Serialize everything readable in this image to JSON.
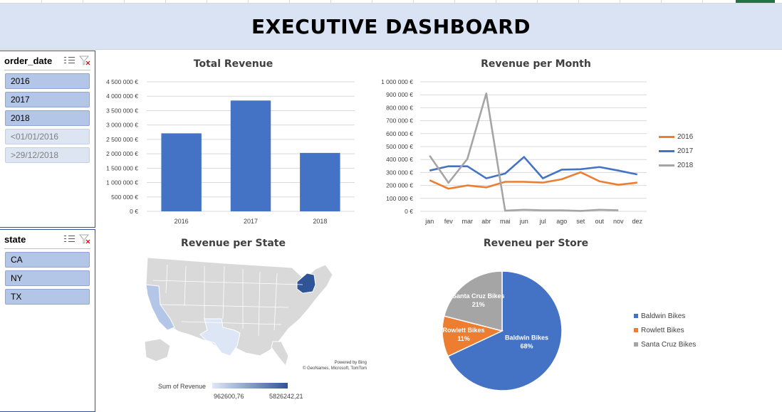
{
  "dashboard": {
    "title": "EXECUTIVE DASHBOARD"
  },
  "slicers": {
    "order_date": {
      "label": "order_date",
      "items": [
        {
          "label": "2016",
          "selected": true
        },
        {
          "label": "2017",
          "selected": true
        },
        {
          "label": "2018",
          "selected": true
        },
        {
          "label": "<01/01/2016",
          "selected": false
        },
        {
          "label": ">29/12/2018",
          "selected": false
        }
      ]
    },
    "state": {
      "label": "state",
      "items": [
        {
          "label": "CA",
          "selected": true
        },
        {
          "label": "NY",
          "selected": true
        },
        {
          "label": "TX",
          "selected": true
        }
      ]
    }
  },
  "colors": {
    "bar": "#4472c4",
    "y2016": "#ed7d31",
    "y2017": "#4472c4",
    "y2018": "#a5a5a5"
  },
  "chart_data": [
    {
      "type": "bar",
      "title": "Total Revenue",
      "categories": [
        "2016",
        "2017",
        "2018"
      ],
      "values": [
        2710000,
        3850000,
        2030000
      ],
      "ylim": [
        0,
        4500000
      ],
      "yticks": [
        "0 €",
        "500 000 €",
        "1 000 000 €",
        "1 500 000 €",
        "2 000 000 €",
        "2 500 000 €",
        "3 000 000 €",
        "3 500 000 €",
        "4 000 000 €",
        "4 500 000 €"
      ],
      "grid": true
    },
    {
      "type": "line",
      "title": "Revenue per Month",
      "categories": [
        "jan",
        "fev",
        "mar",
        "abr",
        "mai",
        "jun",
        "jul",
        "ago",
        "set",
        "out",
        "nov",
        "dez"
      ],
      "ylim": [
        0,
        1000000
      ],
      "yticks": [
        "0 €",
        "100 000 €",
        "200 000 €",
        "300 000 €",
        "400 000 €",
        "500 000 €",
        "600 000 €",
        "700 000 €",
        "800 000 €",
        "900 000 €",
        "1 000 000 €"
      ],
      "series": [
        {
          "name": "2016",
          "values": [
            240000,
            175000,
            200000,
            185000,
            228000,
            228000,
            222000,
            248000,
            302000,
            232000,
            205000,
            222000
          ]
        },
        {
          "name": "2017",
          "values": [
            315000,
            348000,
            348000,
            255000,
            292000,
            420000,
            255000,
            322000,
            325000,
            342000,
            315000,
            285000
          ]
        },
        {
          "name": "2018",
          "values": [
            430000,
            220000,
            405000,
            910000,
            5000,
            12000,
            8000,
            8000,
            3000,
            12000,
            8000,
            null
          ]
        }
      ],
      "legend": "right",
      "grid": true
    },
    {
      "type": "pie",
      "title": "Reveneu per Store",
      "slices": [
        {
          "name": "Baldwin Bikes",
          "value": 68,
          "label": "68%"
        },
        {
          "name": "Rowlett Bikes",
          "value": 11,
          "label": "11%"
        },
        {
          "name": "Santa Cruz Bikes",
          "value": 21,
          "label": "21%"
        }
      ],
      "legend": "right"
    }
  ],
  "map": {
    "title": "Revenue per State",
    "credit_line1": "Powered by Bing",
    "credit_line2": "© GeoNames, Microsoft, TomTom",
    "legend_label": "Sum of Revenue",
    "min_label": "962600,76",
    "max_label": "5826242,21"
  }
}
